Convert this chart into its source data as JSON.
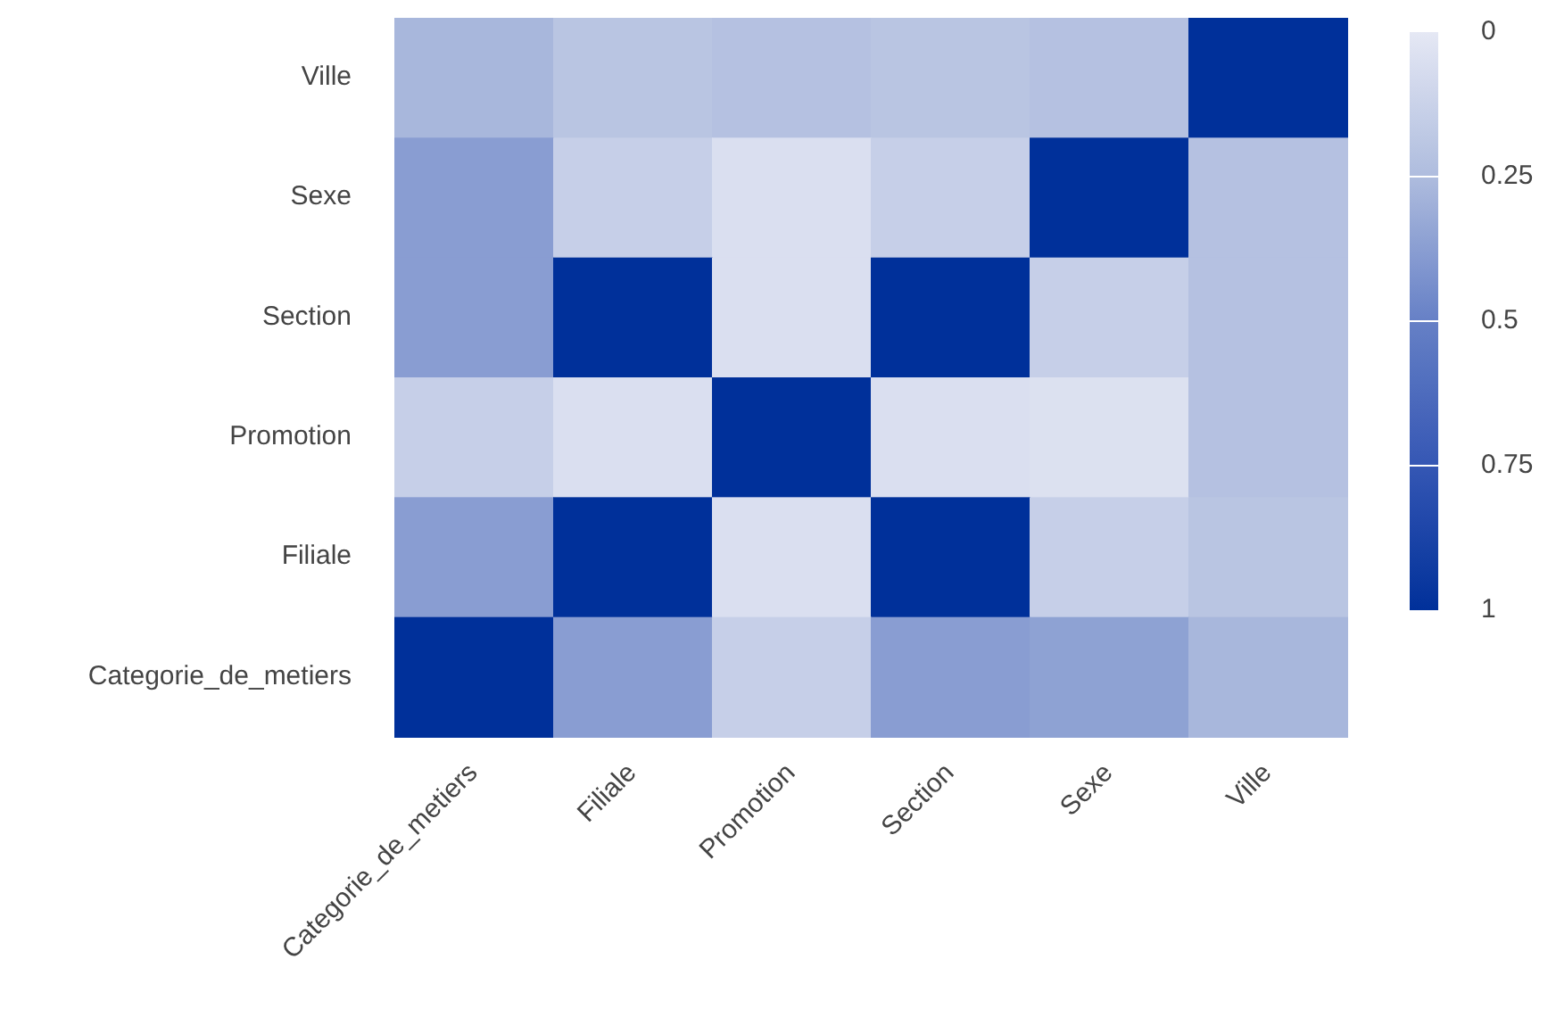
{
  "chart_data": {
    "type": "heatmap",
    "categories": [
      "Categorie_de_metiers",
      "Filiale",
      "Promotion",
      "Section",
      "Sexe",
      "Ville"
    ],
    "y_categories": [
      "Ville",
      "Sexe",
      "Section",
      "Promotion",
      "Filiale",
      "Categorie_de_metiers"
    ],
    "cells": [
      [
        0.27,
        0.2,
        0.22,
        0.2,
        0.22,
        1
      ],
      [
        0.38,
        0.14,
        0.05,
        0.14,
        1,
        0.22
      ],
      [
        0.38,
        1,
        0.05,
        1,
        0.14,
        0.22
      ],
      [
        0.14,
        0.05,
        1,
        0.05,
        0.04,
        0.22
      ],
      [
        0.38,
        1,
        0.05,
        1,
        0.14,
        0.2
      ],
      [
        1,
        0.38,
        0.14,
        0.38,
        0.36,
        0.27
      ]
    ],
    "clim": [
      0,
      1
    ],
    "cticks": [
      0,
      0.25,
      0.5,
      0.75,
      1
    ]
  }
}
